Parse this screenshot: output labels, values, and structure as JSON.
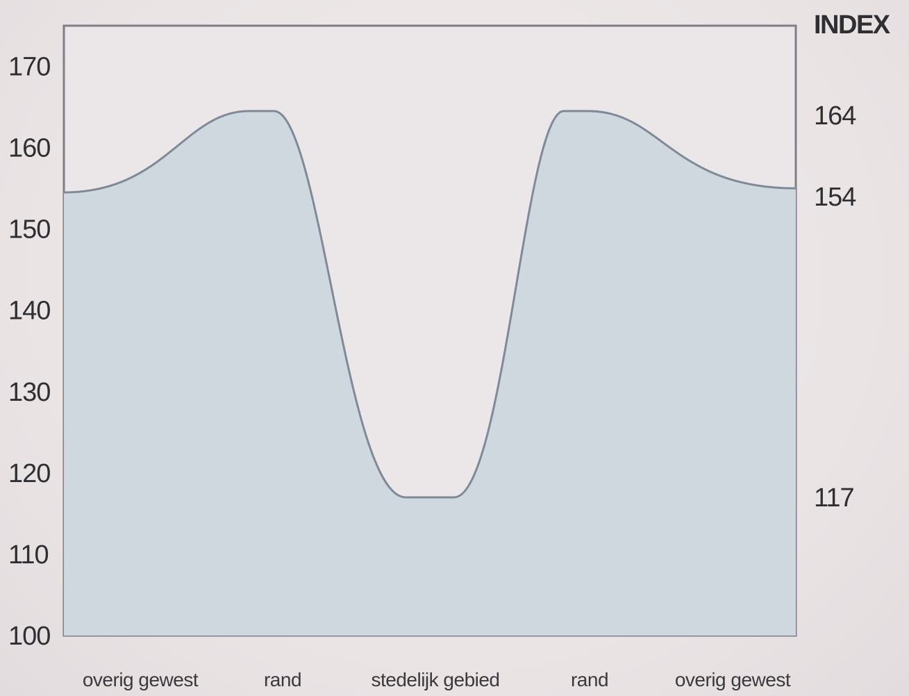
{
  "chart_data": {
    "type": "area",
    "ylabel_right": "INDEX",
    "ylim": [
      100,
      175
    ],
    "yticks": [
      100,
      110,
      120,
      130,
      140,
      150,
      160,
      170
    ],
    "categories": [
      "overig gewest",
      "rand",
      "stedelijk gebied",
      "rand",
      "overig gewest"
    ],
    "x": [
      0,
      0.27,
      0.5,
      0.7,
      1
    ],
    "values": [
      154.5,
      164.5,
      117,
      164.5,
      155
    ],
    "right_annotations": [
      164,
      154,
      117
    ],
    "grid": false,
    "colors": {
      "fill": "#cfd7df",
      "line": "#7f8a98",
      "frame": "#7e7e86"
    }
  }
}
